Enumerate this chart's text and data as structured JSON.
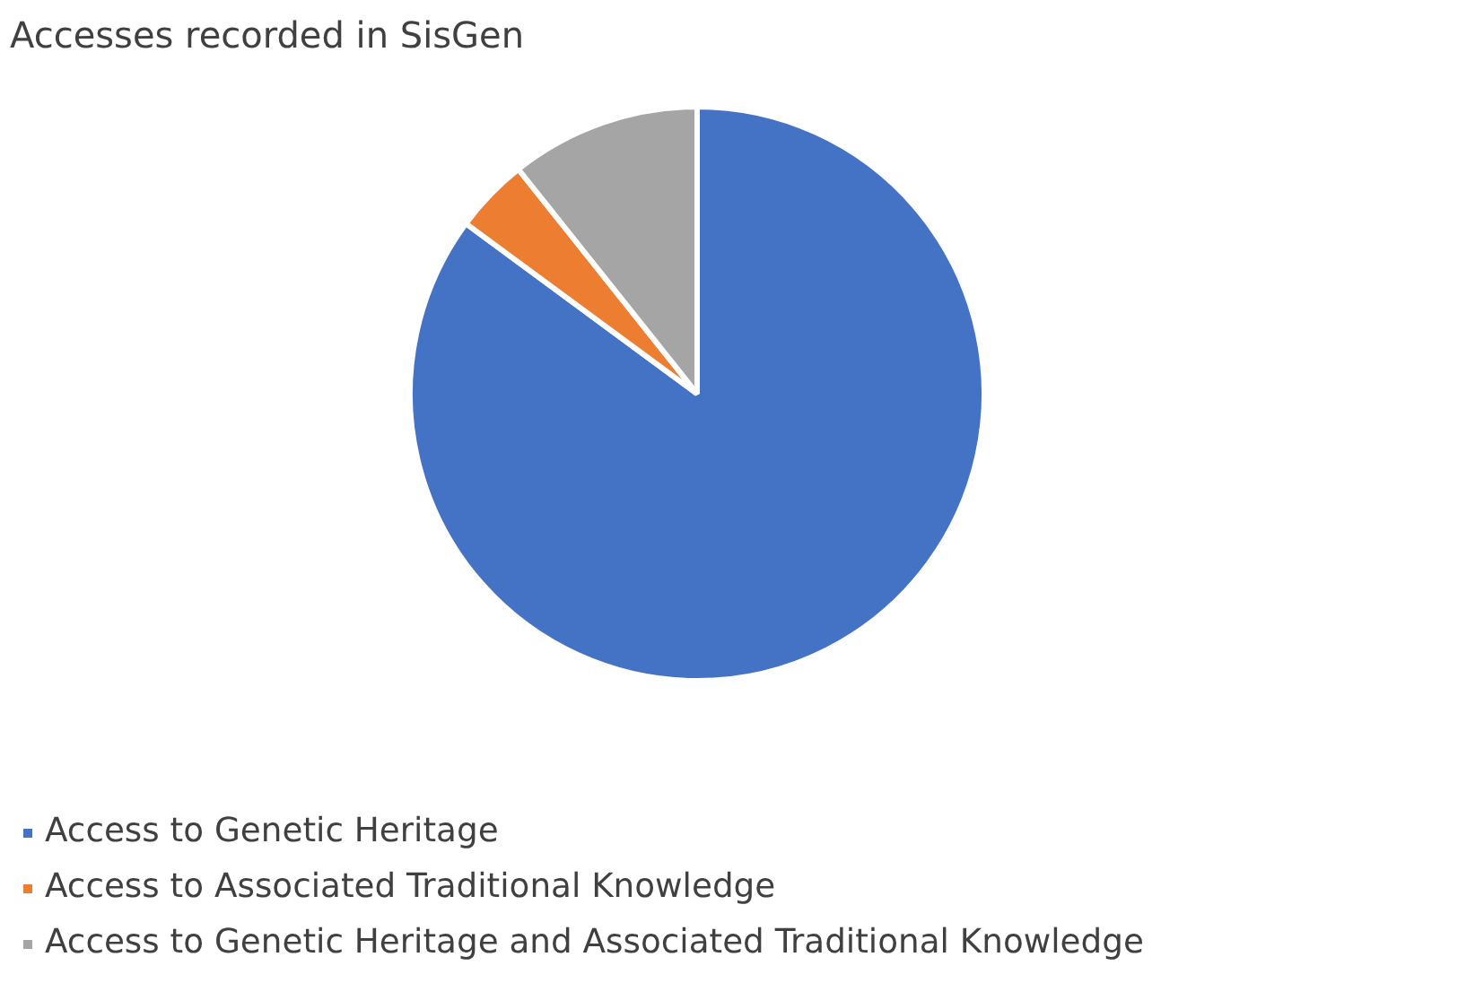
{
  "chart_data": {
    "type": "pie",
    "title": "Accesses recorded in SisGen",
    "categories": [
      "Access to Genetic Heritage",
      "Access to Associated Traditional Knowledge",
      "Access to Genetic Heritage and Associated Traditional Knowledge"
    ],
    "values": [
      85.1,
      4.2,
      10.7
    ],
    "colors": [
      "#4472c4",
      "#ed7d31",
      "#a5a5a5"
    ],
    "legend": "bottom"
  }
}
